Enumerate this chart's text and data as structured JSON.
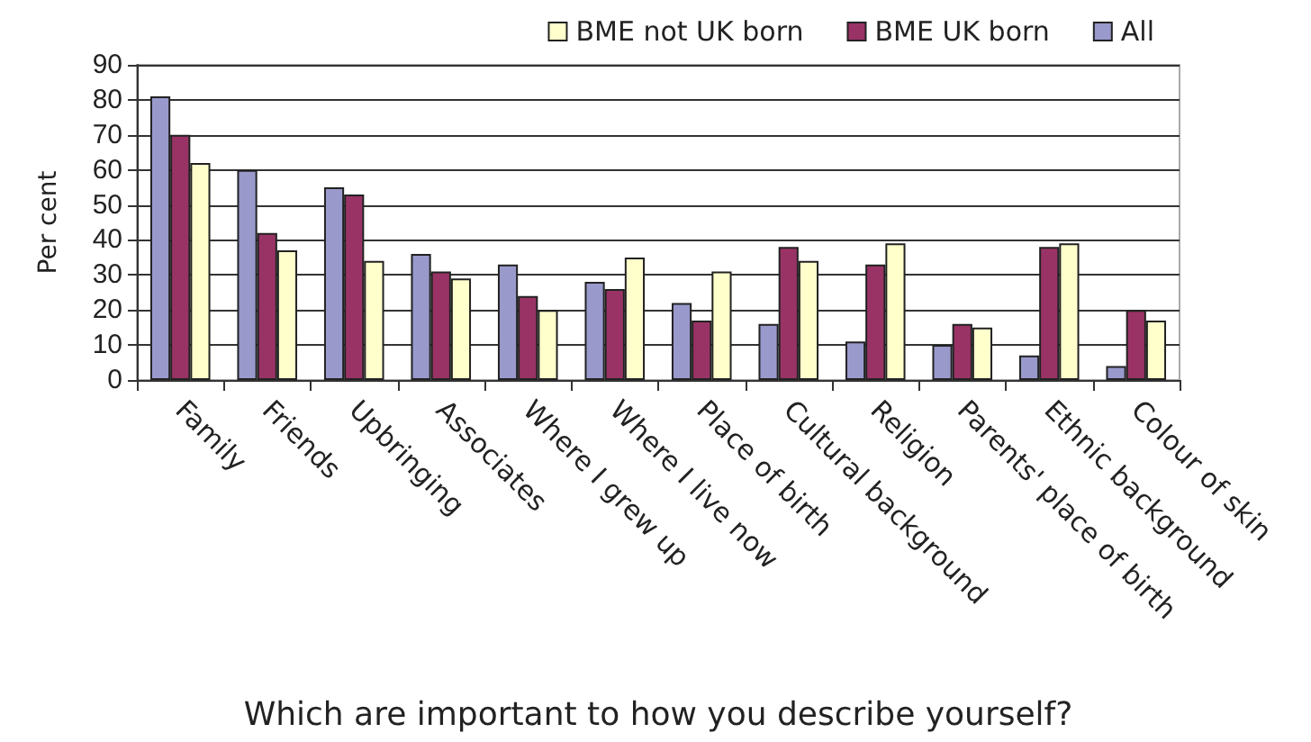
{
  "chart_data": {
    "type": "bar",
    "xlabel": "Which are important to how you describe yourself?",
    "ylabel": "Per cent",
    "categories": [
      "Family",
      "Friends",
      "Upbringing",
      "Associates",
      "Where I grew up",
      "Where I live now",
      "Place of birth",
      "Cultural background",
      "Religion",
      "Parents' place of birth",
      "Ethnic background",
      "Colour of skin"
    ],
    "series": [
      {
        "name": "All",
        "color": "#9999cc",
        "values": [
          81,
          60,
          55,
          36,
          33,
          28,
          22,
          16,
          11,
          10,
          7,
          4
        ]
      },
      {
        "name": "BME UK born",
        "color": "#993366",
        "values": [
          70,
          42,
          53,
          31,
          24,
          26,
          17,
          38,
          33,
          16,
          38,
          20
        ]
      },
      {
        "name": "BME not UK born",
        "color": "#ffffcc",
        "values": [
          62,
          37,
          34,
          29,
          20,
          35,
          31,
          34,
          39,
          15,
          39,
          17
        ]
      }
    ],
    "ylim": [
      0,
      90
    ],
    "yticks": [
      0,
      10,
      20,
      30,
      40,
      50,
      60,
      70,
      80,
      90
    ],
    "grid": "y",
    "legend": "top right"
  }
}
